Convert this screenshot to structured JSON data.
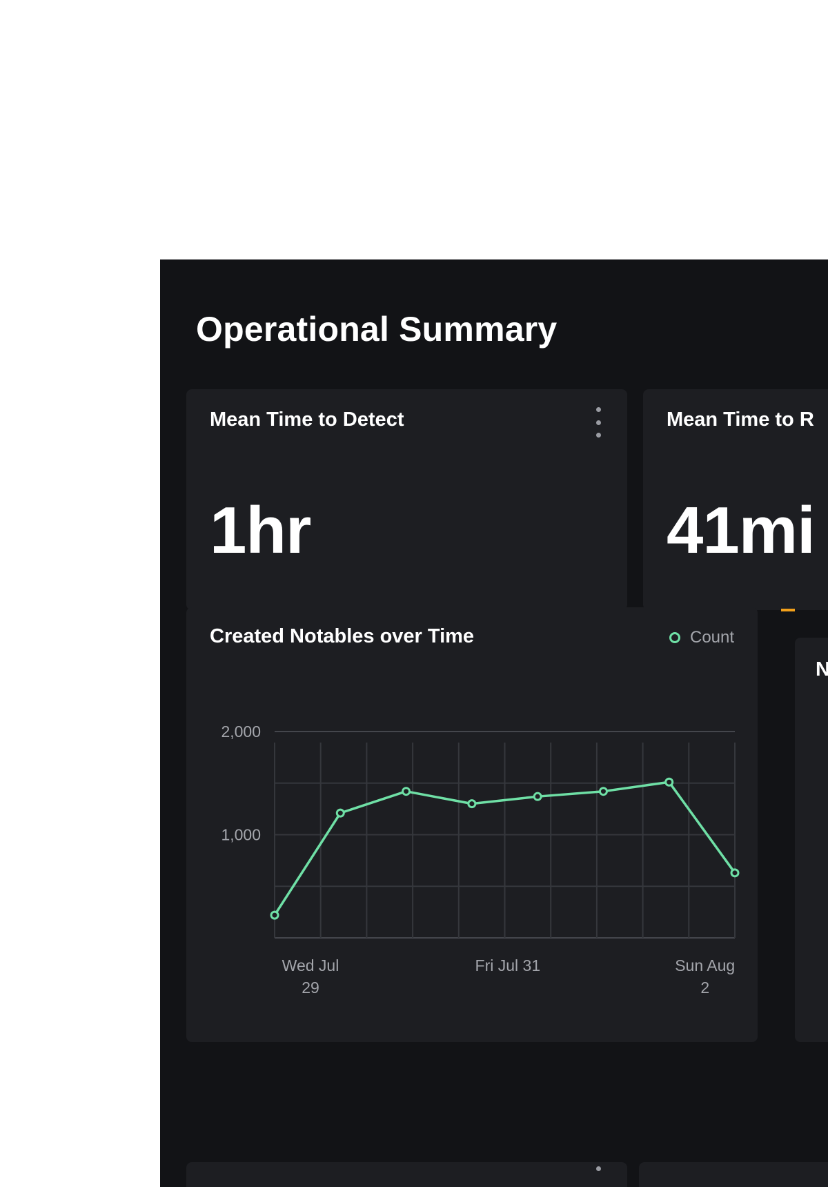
{
  "page": {
    "title": "Operational Summary"
  },
  "cards": {
    "mttd": {
      "title": "Mean Time to Detect",
      "value": "1hr"
    },
    "mttr": {
      "title": "Mean Time to R",
      "value": "41mi"
    },
    "next": {
      "title": "N"
    }
  },
  "colors": {
    "background": "#121316",
    "card": "#1d1e22",
    "series": "#6fe0a6",
    "accent": "#f2a01b"
  },
  "chart_data": {
    "type": "line",
    "title": "Created Notables over Time",
    "series": [
      {
        "name": "Count",
        "color": "#6fe0a6",
        "values": [
          220,
          1210,
          1420,
          1300,
          1370,
          1420,
          1510,
          630
        ]
      }
    ],
    "x_ticks": [
      {
        "index": 0,
        "lines": [
          "Wed Jul",
          "29"
        ]
      },
      {
        "index": 3,
        "lines": [
          "Fri Jul 31"
        ]
      },
      {
        "index": 6,
        "lines": [
          "Sun Aug",
          "2"
        ]
      }
    ],
    "y_ticks": [
      {
        "value": 1000,
        "label": "1,000"
      },
      {
        "value": 2000,
        "label": "2,000"
      }
    ],
    "ylim": [
      0,
      2000
    ],
    "grid": true,
    "legend": "top-right"
  }
}
